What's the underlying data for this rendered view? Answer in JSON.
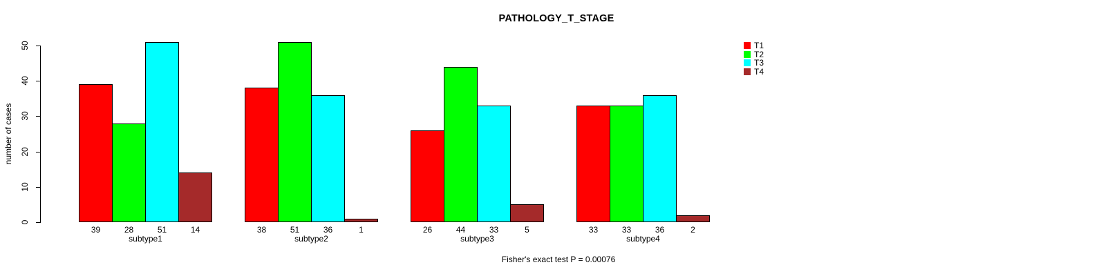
{
  "page": {
    "background": "#ffffff"
  },
  "chart_data": {
    "type": "bar",
    "title": "PATHOLOGY_T_STAGE",
    "xlabel": "",
    "ylabel": "number of cases",
    "categories": [
      "subtype1",
      "subtype2",
      "subtype3",
      "subtype4"
    ],
    "series": [
      {
        "name": "T1",
        "color": "#ff0000",
        "values": [
          39,
          38,
          26,
          33
        ]
      },
      {
        "name": "T2",
        "color": "#00ff00",
        "values": [
          28,
          51,
          44,
          33
        ]
      },
      {
        "name": "T3",
        "color": "#00ffff",
        "values": [
          51,
          36,
          33,
          36
        ]
      },
      {
        "name": "T4",
        "color": "#a52a2a",
        "values": [
          14,
          1,
          5,
          2
        ]
      }
    ],
    "ylim": [
      0,
      50
    ],
    "yticks": [
      0,
      10,
      20,
      30,
      40,
      50
    ],
    "grid": false,
    "legend_position": "top-right",
    "bar_value_labels_shown": true,
    "annotation": "Fisher's exact test P = 0.00076",
    "bar_border_color": "#000000"
  }
}
